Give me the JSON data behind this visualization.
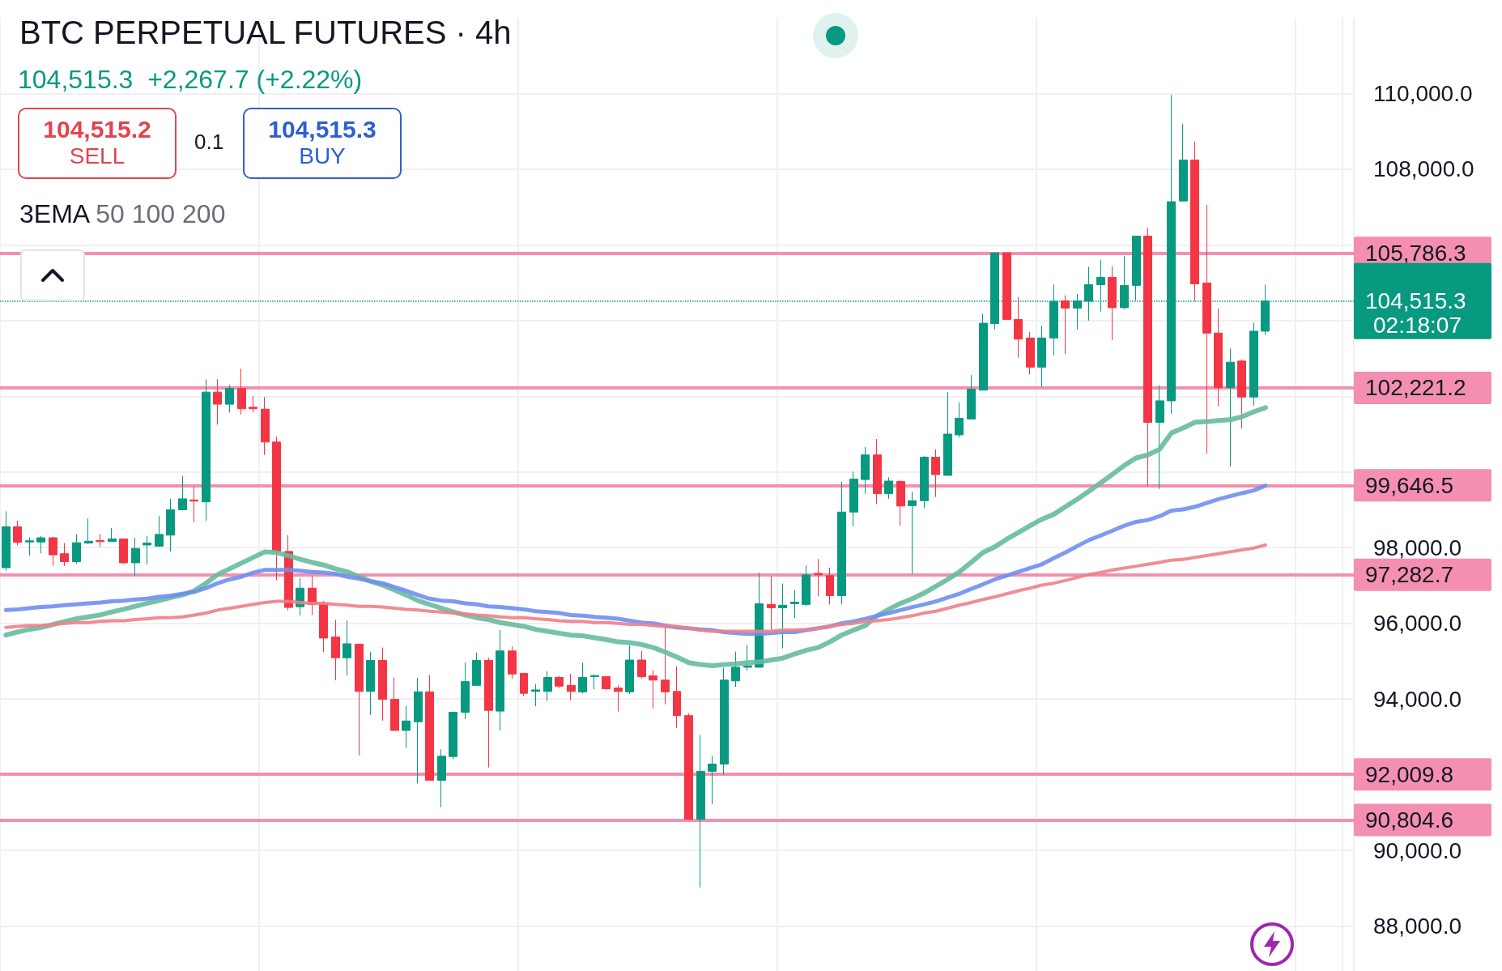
{
  "chart_data": {
    "type": "candlestick",
    "title": "BTC PERPETUAL FUTURES · 4h",
    "subtitle": "104,515.3  +2,267.7 (+2.22%)",
    "annotations": [
      "104,515.2",
      "SELL",
      "0.1",
      "104,515.3",
      "BUY",
      "3EMA 50 100 200",
      "02:18:07"
    ],
    "categories": [
      null,
      null,
      null,
      null,
      null,
      null,
      null,
      null,
      null,
      null,
      null,
      null,
      null,
      null,
      null,
      null,
      null,
      null,
      null,
      null,
      null,
      null,
      null,
      null,
      null,
      null,
      null,
      null,
      null,
      null,
      null,
      null,
      null,
      null,
      null,
      null,
      null,
      null,
      null,
      null,
      null,
      null,
      null,
      null,
      null,
      null,
      null,
      null,
      null,
      null,
      null,
      null,
      null,
      null,
      null,
      null,
      null,
      null,
      null,
      null,
      null,
      null,
      null,
      null,
      null,
      null,
      null,
      null,
      null,
      null,
      null,
      null,
      null,
      null,
      null,
      null,
      null,
      null,
      null,
      null,
      null,
      null,
      null,
      null,
      null,
      null,
      null,
      null,
      null,
      null,
      null,
      null,
      null,
      null,
      null,
      null,
      null,
      null,
      null,
      null,
      null,
      null,
      null,
      null,
      null,
      null,
      null,
      null
    ],
    "ohlc": [
      [
        97470,
        98960,
        97390,
        98550
      ],
      [
        98550,
        98710,
        98060,
        98140
      ],
      [
        98150,
        98270,
        97790,
        98180
      ],
      [
        98150,
        98310,
        97850,
        98260
      ],
      [
        98260,
        98290,
        97520,
        97810
      ],
      [
        97840,
        98120,
        97510,
        97630
      ],
      [
        97630,
        98350,
        97570,
        98130
      ],
      [
        98120,
        98770,
        98100,
        98170
      ],
      [
        98190,
        98360,
        98020,
        98160
      ],
      [
        98160,
        98520,
        98160,
        98230
      ],
      [
        98230,
        98230,
        97570,
        97600
      ],
      [
        97600,
        98260,
        97250,
        97980
      ],
      [
        98070,
        98310,
        97550,
        98120
      ],
      [
        98040,
        98840,
        98020,
        98350
      ],
      [
        98330,
        99290,
        97900,
        99000
      ],
      [
        99000,
        99890,
        99000,
        99290
      ],
      [
        99260,
        99620,
        98670,
        99230
      ],
      [
        99210,
        102450,
        98710,
        102110
      ],
      [
        102110,
        102450,
        101250,
        101790
      ],
      [
        101790,
        102300,
        101570,
        102210
      ],
      [
        102210,
        102730,
        101520,
        101670
      ],
      [
        101710,
        102000,
        101570,
        101670
      ],
      [
        101660,
        101980,
        100450,
        100790
      ],
      [
        100790,
        100930,
        97140,
        97900
      ],
      [
        97900,
        98330,
        96340,
        96420
      ],
      [
        96440,
        97190,
        96210,
        96930
      ],
      [
        96930,
        97240,
        96220,
        96500
      ],
      [
        96510,
        96590,
        95240,
        95610
      ],
      [
        95640,
        96090,
        94500,
        95090
      ],
      [
        95090,
        96070,
        94620,
        95460
      ],
      [
        95450,
        95450,
        92510,
        94200
      ],
      [
        94200,
        95250,
        93580,
        95020
      ],
      [
        95020,
        95360,
        93430,
        93990
      ],
      [
        93990,
        94570,
        93170,
        93170
      ],
      [
        93170,
        93820,
        92710,
        93420
      ],
      [
        93400,
        94560,
        91770,
        94190
      ],
      [
        94190,
        94630,
        91850,
        91850
      ],
      [
        91850,
        92670,
        91140,
        92490
      ],
      [
        92480,
        93670,
        92420,
        93650
      ],
      [
        93650,
        94960,
        93470,
        94460
      ],
      [
        94360,
        95230,
        94340,
        95020
      ],
      [
        95020,
        95090,
        92190,
        93700
      ],
      [
        93680,
        95820,
        93170,
        95270
      ],
      [
        95270,
        95390,
        94540,
        94660
      ],
      [
        94680,
        94680,
        94080,
        94150
      ],
      [
        94200,
        94390,
        93810,
        94240
      ],
      [
        94200,
        94730,
        93950,
        94570
      ],
      [
        94570,
        94610,
        94290,
        94340
      ],
      [
        94360,
        94660,
        93970,
        94200
      ],
      [
        94190,
        94960,
        94150,
        94570
      ],
      [
        94590,
        94650,
        94260,
        94620
      ],
      [
        94590,
        94610,
        94240,
        94270
      ],
      [
        94290,
        94360,
        93670,
        94200
      ],
      [
        94190,
        95430,
        94130,
        95030
      ],
      [
        95030,
        95270,
        94540,
        94590
      ],
      [
        94610,
        94760,
        93750,
        94500
      ],
      [
        94500,
        95920,
        93860,
        94190
      ],
      [
        94200,
        94860,
        93240,
        93560
      ],
      [
        93560,
        93620,
        90820,
        90820
      ],
      [
        90820,
        93050,
        89020,
        92090
      ],
      [
        92090,
        92490,
        91220,
        92280
      ],
      [
        92280,
        94830,
        92000,
        94500
      ],
      [
        94480,
        95250,
        94320,
        94840
      ],
      [
        94840,
        95430,
        94750,
        94880
      ],
      [
        94840,
        97340,
        94840,
        96520
      ],
      [
        96500,
        97240,
        95760,
        96410
      ],
      [
        96410,
        97050,
        95340,
        96480
      ],
      [
        96520,
        96880,
        96140,
        96560
      ],
      [
        96500,
        97530,
        96460,
        97280
      ],
      [
        97320,
        97700,
        96710,
        97280
      ],
      [
        97260,
        97470,
        96500,
        96730
      ],
      [
        96730,
        99740,
        96500,
        98940
      ],
      [
        98940,
        100010,
        98560,
        99810
      ],
      [
        99800,
        100660,
        99420,
        100450
      ],
      [
        100450,
        100870,
        99150,
        99430
      ],
      [
        99430,
        99860,
        99290,
        99760
      ],
      [
        99750,
        99780,
        98580,
        99100
      ],
      [
        99110,
        99480,
        97300,
        99240
      ],
      [
        99240,
        100420,
        99040,
        100390
      ],
      [
        100390,
        100600,
        99340,
        99930
      ],
      [
        99910,
        102110,
        99910,
        101000
      ],
      [
        100980,
        101840,
        100910,
        101420
      ],
      [
        101400,
        102560,
        101400,
        102190
      ],
      [
        102160,
        104180,
        102160,
        103930
      ],
      [
        103920,
        105786.3,
        103770,
        105786.3
      ],
      [
        105786.3,
        105786.3,
        104030,
        104030
      ],
      [
        104030,
        104620,
        103020,
        103510
      ],
      [
        103540,
        103700,
        102580,
        102770
      ],
      [
        102770,
        103860,
        102250,
        103540
      ],
      [
        103540,
        104950,
        103080,
        104510
      ],
      [
        104520,
        104670,
        103120,
        104330
      ],
      [
        104330,
        104700,
        103760,
        104520
      ],
      [
        104510,
        105420,
        104000,
        104950
      ],
      [
        104950,
        105610,
        104240,
        105140
      ],
      [
        105140,
        105440,
        103480,
        104340
      ],
      [
        104340,
        105710,
        104300,
        104930
      ],
      [
        104930,
        106230,
        104530,
        106230
      ],
      [
        106230,
        106450,
        99620,
        101310
      ],
      [
        101310,
        102290,
        99550,
        101880
      ],
      [
        101880,
        109960,
        101540,
        107140
      ],
      [
        107160,
        109200,
        107140,
        108240
      ],
      [
        108240,
        108730,
        104510,
        104970
      ],
      [
        104990,
        107060,
        100480,
        103670
      ],
      [
        103670,
        104320,
        101740,
        102230
      ],
      [
        102230,
        103260,
        100140,
        102900
      ],
      [
        102930,
        102970,
        101150,
        101980
      ],
      [
        101980,
        103950,
        101750,
        103720
      ],
      [
        103720,
        104950,
        103620,
        104515.3
      ]
    ],
    "colors": [
      "#089981",
      "#f23645",
      "#089981",
      "#089981",
      "#f23645",
      "#f23645",
      "#089981",
      "#089981",
      "#f23645",
      "#089981",
      "#f23645",
      "#089981",
      "#089981",
      "#089981",
      "#089981",
      "#089981",
      "#f23645",
      "#089981",
      "#f23645",
      "#089981",
      "#f23645",
      "#f23645",
      "#f23645",
      "#f23645",
      "#f23645",
      "#089981",
      "#f23645",
      "#f23645",
      "#f23645",
      "#089981",
      "#f23645",
      "#089981",
      "#f23645",
      "#f23645",
      "#089981",
      "#089981",
      "#f23645",
      "#089981",
      "#089981",
      "#089981",
      "#089981",
      "#f23645",
      "#089981",
      "#f23645",
      "#f23645",
      "#089981",
      "#089981",
      "#f23645",
      "#f23645",
      "#089981",
      "#089981",
      "#f23645",
      "#f23645",
      "#089981",
      "#f23645",
      "#f23645",
      "#f23645",
      "#f23645",
      "#f23645",
      "#089981",
      "#089981",
      "#089981",
      "#089981",
      "#089981",
      "#089981",
      "#f23645",
      "#089981",
      "#089981",
      "#089981",
      "#f23645",
      "#f23645",
      "#089981",
      "#089981",
      "#089981",
      "#f23645",
      "#089981",
      "#f23645",
      "#089981",
      "#089981",
      "#f23645",
      "#089981",
      "#089981",
      "#089981",
      "#089981",
      "#089981",
      "#f23645",
      "#f23645",
      "#f23645",
      "#089981",
      "#089981",
      "#f23645",
      "#089981",
      "#089981",
      "#089981",
      "#f23645",
      "#089981",
      "#089981",
      "#f23645",
      "#089981",
      "#089981",
      "#089981",
      "#f23645",
      "#f23645",
      "#f23645",
      "#089981",
      "#f23645",
      "#089981",
      "#089981"
    ],
    "series": [
      {
        "type": "line",
        "color": "#66bba0",
        "values": [
          95690,
          95770,
          95840,
          95890,
          95970,
          96050,
          96120,
          96170,
          96220,
          96300,
          96370,
          96450,
          96530,
          96600,
          96680,
          96750,
          96860,
          97060,
          97290,
          97440,
          97590,
          97740,
          97890,
          97870,
          97790,
          97690,
          97610,
          97540,
          97440,
          97360,
          97230,
          97110,
          97010,
          96880,
          96750,
          96600,
          96500,
          96400,
          96300,
          96220,
          96150,
          96100,
          96020,
          95970,
          95920,
          95840,
          95790,
          95740,
          95690,
          95670,
          95620,
          95570,
          95510,
          95490,
          95440,
          95360,
          95240,
          95110,
          94960,
          94910,
          94880,
          94910,
          94930,
          94960,
          94980,
          95030,
          95080,
          95190,
          95290,
          95360,
          95510,
          95690,
          95820,
          95940,
          96200,
          96370,
          96530,
          96650,
          96800,
          96980,
          97160,
          97360,
          97610,
          97870,
          98020,
          98220,
          98400,
          98580,
          98750,
          98880,
          99080,
          99280,
          99490,
          99710,
          99940,
          100170,
          100370,
          100450,
          100600,
          101030,
          101160,
          101310,
          101330,
          101360,
          101380,
          101460,
          101590,
          101700
        ]
      },
      {
        "type": "line",
        "color": "#6f8ef2",
        "values": [
          96350,
          96370,
          96400,
          96430,
          96450,
          96480,
          96500,
          96530,
          96550,
          96580,
          96600,
          96630,
          96650,
          96700,
          96730,
          96780,
          96830,
          96930,
          97060,
          97160,
          97230,
          97340,
          97410,
          97410,
          97410,
          97390,
          97360,
          97340,
          97310,
          97230,
          97180,
          97110,
          97060,
          96960,
          96860,
          96750,
          96650,
          96600,
          96580,
          96530,
          96500,
          96450,
          96430,
          96400,
          96370,
          96320,
          96300,
          96270,
          96220,
          96200,
          96170,
          96150,
          96120,
          96070,
          96020,
          96000,
          95940,
          95890,
          95870,
          95840,
          95820,
          95770,
          95740,
          95720,
          95720,
          95740,
          95770,
          95770,
          95820,
          95870,
          95920,
          96000,
          96050,
          96120,
          96200,
          96270,
          96350,
          96430,
          96500,
          96580,
          96680,
          96780,
          96910,
          97030,
          97160,
          97260,
          97360,
          97460,
          97560,
          97720,
          97870,
          98040,
          98200,
          98320,
          98450,
          98580,
          98680,
          98730,
          98830,
          98980,
          99010,
          99080,
          99180,
          99280,
          99360,
          99440,
          99510,
          99640
        ]
      },
      {
        "type": "line",
        "color": "#ef8088",
        "values": [
          95890,
          95920,
          95940,
          95940,
          95970,
          96000,
          96020,
          96020,
          96050,
          96070,
          96070,
          96100,
          96120,
          96150,
          96150,
          96170,
          96220,
          96270,
          96350,
          96400,
          96450,
          96500,
          96550,
          96580,
          96580,
          96550,
          96530,
          96530,
          96500,
          96480,
          96450,
          96450,
          96430,
          96400,
          96370,
          96350,
          96320,
          96300,
          96270,
          96250,
          96220,
          96200,
          96170,
          96150,
          96150,
          96120,
          96100,
          96070,
          96050,
          96050,
          96020,
          96020,
          96000,
          95970,
          95970,
          95940,
          95920,
          95920,
          95870,
          95820,
          95790,
          95790,
          95790,
          95790,
          95790,
          95790,
          95820,
          95820,
          95840,
          95870,
          95920,
          95970,
          96000,
          96050,
          96070,
          96100,
          96150,
          96200,
          96270,
          96320,
          96400,
          96480,
          96550,
          96630,
          96700,
          96780,
          96860,
          96930,
          97010,
          97060,
          97130,
          97210,
          97290,
          97340,
          97410,
          97460,
          97510,
          97560,
          97610,
          97670,
          97690,
          97740,
          97790,
          97840,
          97890,
          97940,
          97990,
          98070
        ]
      }
    ],
    "ref_lines": [
      {
        "axis": "y",
        "value": 105786.3,
        "label": "105,786.3",
        "color": "#f48fb1"
      },
      {
        "axis": "y",
        "value": 104515.3,
        "label": "104,515.3",
        "color": "#089981",
        "line_style": "dotted"
      },
      {
        "axis": "y",
        "value": 102221.2,
        "label": "102,221.2",
        "color": "#f48fb1"
      },
      {
        "axis": "y",
        "value": 99646.5,
        "label": "99,646.5",
        "color": "#f48fb1"
      },
      {
        "axis": "y",
        "value": 97282.7,
        "label": "97,282.7",
        "color": "#f48fb1"
      },
      {
        "axis": "y",
        "value": 92009.8,
        "label": "92,009.8",
        "color": "#f48fb1"
      },
      {
        "axis": "y",
        "value": 90804.6,
        "label": "90,804.6",
        "color": "#f48fb1"
      }
    ],
    "ylim": [
      86000,
      112000
    ],
    "yticks": [
      {
        "value": 88000,
        "label": "88,000.0"
      },
      {
        "value": 90000,
        "label": "90,000.0"
      },
      {
        "value": 92000,
        "label": null
      },
      {
        "value": 94000,
        "label": "94,000.0"
      },
      {
        "value": 96000,
        "label": "96,000.0"
      },
      {
        "value": 98000,
        "label": "98,000.0"
      },
      {
        "value": 100000,
        "label": null
      },
      {
        "value": 102000,
        "label": null
      },
      {
        "value": 104000,
        "label": null
      },
      {
        "value": 106000,
        "label": null
      },
      {
        "value": 108000,
        "label": "108,000.0"
      },
      {
        "value": 110000,
        "label": "110,000.0"
      }
    ],
    "grid": true,
    "marker": "none",
    "tick_labels": "y"
  }
}
